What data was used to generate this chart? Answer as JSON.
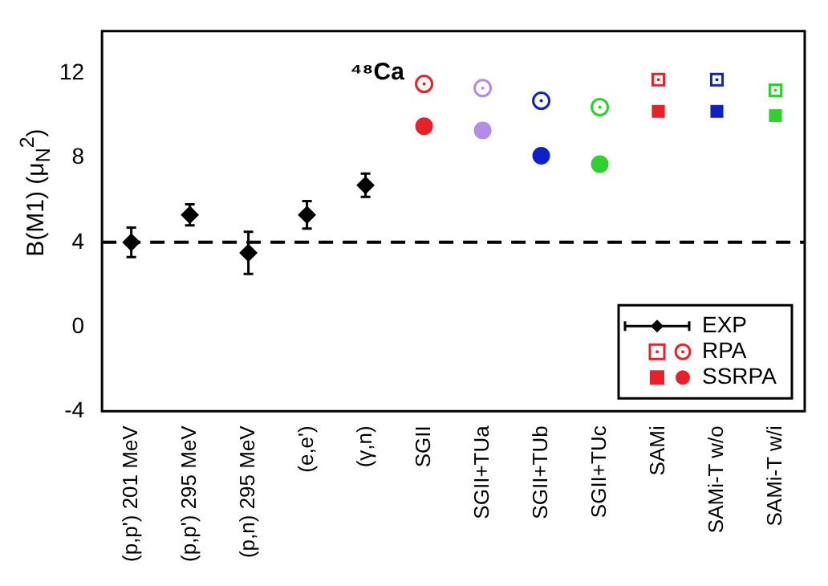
{
  "chart_data": {
    "type": "scatter",
    "ylabel": "B(M1) (μ$_{N}$$^{2}$)",
    "annotations": [
      "⁴⁸Ca"
    ],
    "categories": [
      "(p,p') 201 MeV",
      "(p,p') 295 MeV",
      "(p,n) 295 MeV",
      "(e,e')",
      "(γ,n)",
      "SGII",
      "SGII+TUa",
      "SGII+TUb",
      "SGII+TUc",
      "SAMi",
      "SAMi-T w/o",
      "SAMi-T w/i"
    ],
    "ylim": [
      -4,
      14
    ],
    "yticks": [
      -4,
      0,
      4,
      8,
      12
    ],
    "legend": "bottom right",
    "ref_lines": [
      {
        "axis": "y",
        "value": 4,
        "color": "#000000",
        "line_style": "dashed"
      }
    ],
    "series": [
      {
        "name": "EXP",
        "color": "#000000",
        "marker": "diamond",
        "values": [
          4.0,
          5.3,
          3.5,
          5.3,
          6.7,
          null,
          null,
          null,
          null,
          null,
          null,
          null
        ],
        "errors": [
          0.7,
          0.5,
          1.0,
          0.65,
          0.55,
          null,
          null,
          null,
          null,
          null,
          null,
          null
        ]
      },
      {
        "name": "RPA",
        "marker": "circle",
        "colors": [
          null,
          null,
          null,
          null,
          null,
          "#e8202a",
          "#b48ce8",
          "#1020c8",
          "#30d030",
          null,
          null,
          null
        ],
        "values": [
          null,
          null,
          null,
          null,
          null,
          11.5,
          11.3,
          10.7,
          10.4,
          null,
          null,
          null
        ]
      },
      {
        "marker": "square",
        "colors": [
          null,
          null,
          null,
          null,
          null,
          null,
          null,
          null,
          null,
          "#e8202a",
          "#1020c8",
          "#30d030"
        ],
        "values": [
          null,
          null,
          null,
          null,
          null,
          null,
          null,
          null,
          null,
          11.7,
          11.7,
          11.2
        ]
      },
      {
        "name": "SSRPA",
        "marker": "circle",
        "colors": [
          null,
          null,
          null,
          null,
          null,
          "#e8202a",
          "#b48ce8",
          "#1020c8",
          "#30d030",
          null,
          null,
          null
        ],
        "values": [
          null,
          null,
          null,
          null,
          null,
          9.5,
          9.3,
          8.1,
          7.7,
          null,
          null,
          null
        ]
      },
      {
        "marker": "square",
        "colors": [
          null,
          null,
          null,
          null,
          null,
          null,
          null,
          null,
          null,
          "#e8202a",
          "#1020c8",
          "#30d030"
        ],
        "values": [
          null,
          null,
          null,
          null,
          null,
          null,
          null,
          null,
          null,
          10.2,
          10.2,
          10.0
        ]
      }
    ]
  }
}
